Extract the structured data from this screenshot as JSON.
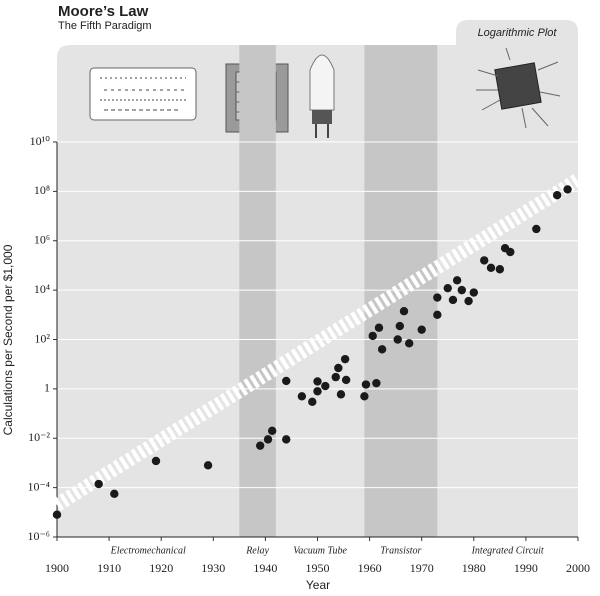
{
  "chart_data": {
    "type": "scatter",
    "title": "Moore’s Law",
    "subtitle": "The Fifth Paradigm",
    "annotation": "Logarithmic Plot",
    "x_label": "Year",
    "y_label": "Calculations per Second per $1,000",
    "yscale": "log",
    "grid": true,
    "color": "#1a1a1a",
    "xlim": [
      1900,
      2000
    ],
    "xticks": [
      1900,
      1910,
      1920,
      1930,
      1940,
      1950,
      1960,
      1970,
      1980,
      1990,
      2000
    ],
    "ylim": [
      1e-06,
      10000000000
    ],
    "yticks": [
      {
        "value": 1e-06,
        "label": "10⁻⁶"
      },
      {
        "value": 0.0001,
        "label": "10⁻⁴"
      },
      {
        "value": 0.01,
        "label": "10⁻²"
      },
      1,
      {
        "value": 100,
        "label": "10²"
      },
      {
        "value": 10000,
        "label": "10⁴"
      },
      {
        "value": 1000000,
        "label": "10⁶"
      },
      {
        "value": 100000000,
        "label": "10⁸"
      },
      {
        "value": 10000000000,
        "label": "10¹⁰"
      }
    ],
    "paradigms": [
      {
        "name": "Electromechanical",
        "start": 1900,
        "end": 1935,
        "shaded": false
      },
      {
        "name": "Relay",
        "start": 1935,
        "end": 1942,
        "shaded": true
      },
      {
        "name": "Vacuum Tube",
        "start": 1942,
        "end": 1959,
        "shaded": false
      },
      {
        "name": "Transistor",
        "start": 1959,
        "end": 1973,
        "shaded": true
      },
      {
        "name": "Integrated Circuit",
        "start": 1973,
        "end": 2000,
        "shaded": false
      }
    ],
    "trend": {
      "x": [
        1900,
        2000
      ],
      "values": [
        2e-05,
        300000000
      ]
    },
    "x": [
      1900,
      1908,
      1911,
      1919,
      1929,
      1939,
      1940.5,
      1941.3,
      1944,
      1944,
      1947,
      1949,
      1950,
      1950,
      1951.5,
      1953.5,
      1954,
      1954.5,
      1955.3,
      1955.5,
      1959,
      1959.3,
      1961.3,
      1960.6,
      1961.8,
      1962.4,
      1965.4,
      1965.8,
      1966.6,
      1967.6,
      1970,
      1973,
      1973,
      1975,
      1976,
      1976.8,
      1977.7,
      1979,
      1980,
      1982,
      1983.3,
      1985,
      1986,
      1987,
      1992,
      1996,
      1998
    ],
    "values": [
      8e-06,
      0.00014,
      5.6e-05,
      0.0012,
      0.0008,
      0.005,
      0.009,
      0.02,
      0.009,
      2.1,
      0.5,
      0.3,
      2,
      0.8,
      1.3,
      3,
      7,
      0.6,
      16,
      2.3,
      0.5,
      1.5,
      1.7,
      140,
      300,
      40,
      100,
      350,
      1400,
      70,
      250,
      5000,
      1000,
      12000,
      4000,
      25000,
      10000,
      3600,
      8000,
      160000,
      80000,
      70000,
      500000,
      350000,
      3000000,
      70000000,
      120000000
    ]
  }
}
